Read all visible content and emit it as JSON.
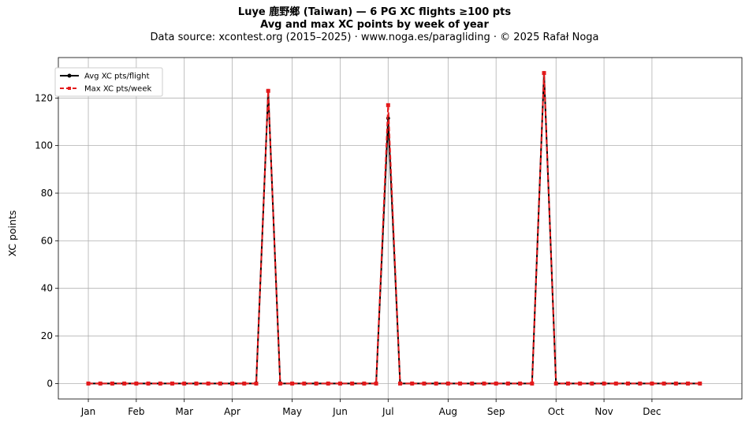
{
  "header": {
    "title": "Luye 鹿野鄉 (Taiwan)  —  6 PG XC flights ≥100 pts",
    "subtitle": "Avg and max XC points by week of year",
    "source": "Data source: xcontest.org (2015–2025)  ·  www.noga.es/paragliding  ·  © 2025 Rafał Noga"
  },
  "chart_data": {
    "type": "line",
    "title": "Luye 鹿野鄉 (Taiwan)  —  6 PG XC flights ≥100 pts",
    "subtitle": "Avg and max XC points by week of year",
    "xlabel": "",
    "ylabel": "XC points",
    "xlim": [
      -2.5,
      54.5
    ],
    "ylim": [
      -6.5,
      137
    ],
    "yticks": [
      0,
      20,
      40,
      60,
      80,
      100,
      120
    ],
    "month_ticks": [
      {
        "label": "Jan",
        "week": 0
      },
      {
        "label": "Feb",
        "week": 4
      },
      {
        "label": "Mar",
        "week": 8
      },
      {
        "label": "Apr",
        "week": 12
      },
      {
        "label": "May",
        "week": 17
      },
      {
        "label": "Jun",
        "week": 21
      },
      {
        "label": "Jul",
        "week": 25
      },
      {
        "label": "Aug",
        "week": 30
      },
      {
        "label": "Sep",
        "week": 34
      },
      {
        "label": "Oct",
        "week": 39
      },
      {
        "label": "Nov",
        "week": 43
      },
      {
        "label": "Dec",
        "week": 47
      }
    ],
    "x": [
      0,
      1,
      2,
      3,
      4,
      5,
      6,
      7,
      8,
      9,
      10,
      11,
      12,
      13,
      14,
      15,
      16,
      17,
      18,
      19,
      20,
      21,
      22,
      23,
      24,
      25,
      26,
      27,
      28,
      29,
      30,
      31,
      32,
      33,
      34,
      35,
      36,
      37,
      38,
      39,
      40,
      41,
      42,
      43,
      44,
      45,
      46,
      47,
      48,
      49,
      50,
      51
    ],
    "series": [
      {
        "name": "Avg XC pts/flight",
        "color": "#000000",
        "values": [
          0,
          0,
          0,
          0,
          0,
          0,
          0,
          0,
          0,
          0,
          0,
          0,
          0,
          0,
          0,
          123,
          0,
          0,
          0,
          0,
          0,
          0,
          0,
          0,
          0,
          111.5,
          0,
          0,
          0,
          0,
          0,
          0,
          0,
          0,
          0,
          0,
          0,
          0,
          130.5,
          0,
          0,
          0,
          0,
          0,
          0,
          0,
          0,
          0,
          0,
          0,
          0,
          0
        ]
      },
      {
        "name": "Max XC pts/week",
        "color": "#e41a1c",
        "values": [
          0,
          0,
          0,
          0,
          0,
          0,
          0,
          0,
          0,
          0,
          0,
          0,
          0,
          0,
          0,
          123,
          0,
          0,
          0,
          0,
          0,
          0,
          0,
          0,
          0,
          117,
          0,
          0,
          0,
          0,
          0,
          0,
          0,
          0,
          0,
          0,
          0,
          0,
          130.5,
          0,
          0,
          0,
          0,
          0,
          0,
          0,
          0,
          0,
          0,
          0,
          0,
          0
        ]
      }
    ],
    "grid": true,
    "legend_position": "top-left"
  }
}
